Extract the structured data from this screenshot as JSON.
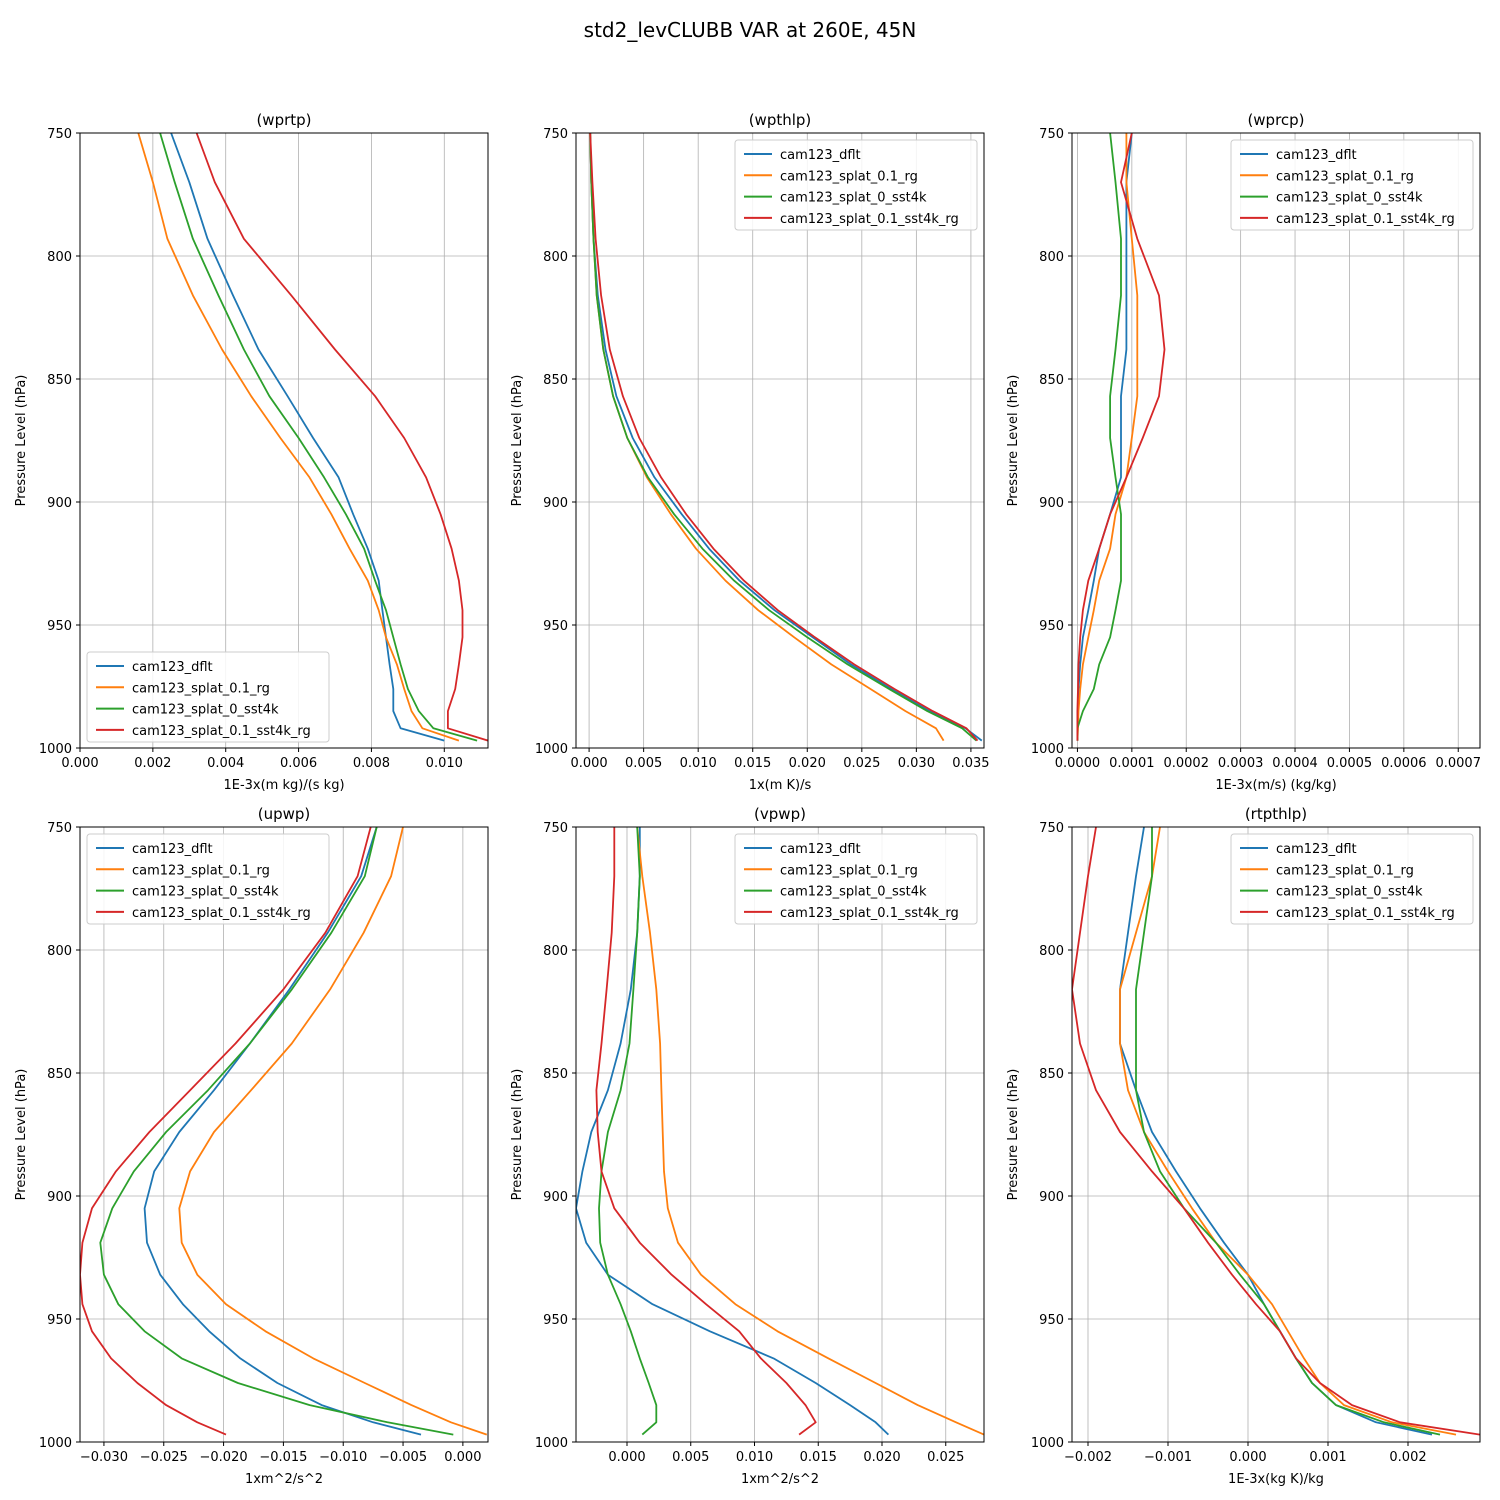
{
  "title": "std2_levCLUBB VAR at 260E, 45N",
  "series_names": [
    "cam123_dflt",
    "cam123_splat_0.1_rg",
    "cam123_splat_0_sst4k",
    "cam123_splat_0.1_sst4k_rg"
  ],
  "colors": [
    "#1f77b4",
    "#ff7f0e",
    "#2ca02c",
    "#d62728"
  ],
  "chart_data": [
    {
      "type": "line",
      "title": "(wprtp)",
      "xlabel": "1E-3x(m kg)/(s kg)",
      "ylabel": "Pressure Level (hPa)",
      "xlim": [
        0,
        0.0112
      ],
      "ylim": [
        1000,
        750
      ],
      "grid": true,
      "legend": "lower-left",
      "xticks": [
        0,
        0.002,
        0.004,
        0.006,
        0.008,
        0.01
      ],
      "xtick_labels": [
        "0.000",
        "0.002",
        "0.004",
        "0.006",
        "0.008",
        "0.010"
      ],
      "yticks": [
        750,
        800,
        850,
        900,
        950,
        1000
      ],
      "ytick_labels": [
        "750",
        "800",
        "850",
        "900",
        "950",
        "1000"
      ],
      "pressure": [
        750,
        770,
        793,
        816,
        838,
        857,
        874,
        890,
        905,
        919,
        932,
        944,
        955,
        966,
        976,
        985,
        992,
        997
      ],
      "series": [
        {
          "name": "cam123_dflt",
          "x": [
            0.0025,
            0.003,
            0.0035,
            0.0042,
            0.0049,
            0.0057,
            0.0064,
            0.0071,
            0.0075,
            0.0079,
            0.0082,
            0.0083,
            0.0084,
            0.0085,
            0.0086,
            0.0086,
            0.0088,
            0.01
          ]
        },
        {
          "name": "cam123_splat_0.1_rg",
          "x": [
            0.0016,
            0.002,
            0.0024,
            0.0031,
            0.0039,
            0.0047,
            0.0055,
            0.0063,
            0.0069,
            0.0074,
            0.0079,
            0.0082,
            0.0084,
            0.0087,
            0.0089,
            0.0091,
            0.0094,
            0.0104
          ]
        },
        {
          "name": "cam123_splat_0_sst4k",
          "x": [
            0.0022,
            0.0026,
            0.0031,
            0.0038,
            0.0045,
            0.0052,
            0.006,
            0.0067,
            0.0073,
            0.0078,
            0.0081,
            0.0084,
            0.0086,
            0.0088,
            0.009,
            0.0093,
            0.0097,
            0.0109
          ]
        },
        {
          "name": "cam123_splat_0.1_sst4k_rg",
          "x": [
            0.0032,
            0.0037,
            0.0045,
            0.0058,
            0.007,
            0.0081,
            0.0089,
            0.0095,
            0.0099,
            0.0102,
            0.0104,
            0.0105,
            0.0105,
            0.0104,
            0.0103,
            0.0101,
            0.0101,
            0.0112
          ]
        }
      ]
    },
    {
      "type": "line",
      "title": "(wpthlp)",
      "xlabel": "1x(m K)/s",
      "ylabel": "Pressure Level (hPa)",
      "xlim": [
        -0.0012,
        0.0362
      ],
      "ylim": [
        1000,
        750
      ],
      "grid": true,
      "legend": "upper-right",
      "xticks": [
        0,
        0.005,
        0.01,
        0.015,
        0.02,
        0.025,
        0.03,
        0.035
      ],
      "xtick_labels": [
        "0.000",
        "0.005",
        "0.010",
        "0.015",
        "0.020",
        "0.025",
        "0.030",
        "0.035"
      ],
      "yticks": [
        750,
        800,
        850,
        900,
        950,
        1000
      ],
      "ytick_labels": [
        "750",
        "800",
        "850",
        "900",
        "950",
        "1000"
      ],
      "pressure": [
        750,
        770,
        793,
        816,
        838,
        857,
        874,
        890,
        905,
        919,
        932,
        944,
        955,
        966,
        976,
        985,
        992,
        997
      ],
      "series": [
        {
          "name": "cam123_dflt",
          "x": [
            0.0001,
            0.0002,
            0.0004,
            0.0008,
            0.0015,
            0.0025,
            0.004,
            0.006,
            0.0085,
            0.011,
            0.0138,
            0.017,
            0.0205,
            0.024,
            0.0277,
            0.0312,
            0.0345,
            0.036
          ]
        },
        {
          "name": "cam123_splat_0.1_rg",
          "x": [
            0.0001,
            0.0002,
            0.0004,
            0.0007,
            0.0013,
            0.0022,
            0.0035,
            0.0053,
            0.0075,
            0.0098,
            0.0125,
            0.0155,
            0.0188,
            0.0222,
            0.0258,
            0.029,
            0.0318,
            0.0325
          ]
        },
        {
          "name": "cam123_splat_0_sst4k",
          "x": [
            0.0001,
            0.0002,
            0.0004,
            0.0007,
            0.0013,
            0.0022,
            0.0035,
            0.0054,
            0.0078,
            0.0104,
            0.0133,
            0.0165,
            0.02,
            0.0237,
            0.0275,
            0.031,
            0.0342,
            0.0355
          ]
        },
        {
          "name": "cam123_splat_0.1_sst4k_rg",
          "x": [
            0.0001,
            0.0003,
            0.0006,
            0.0011,
            0.0019,
            0.0031,
            0.0046,
            0.0066,
            0.0089,
            0.0114,
            0.0142,
            0.0173,
            0.0207,
            0.0243,
            0.028,
            0.0315,
            0.0346,
            0.0356
          ]
        }
      ]
    },
    {
      "type": "line",
      "title": "(wprcp)",
      "xlabel": "1E-3x(m/s) (kg/kg)",
      "ylabel": "Pressure Level (hPa)",
      "xlim": [
        -1e-05,
        0.00074
      ],
      "ylim": [
        1000,
        750
      ],
      "grid": true,
      "legend": "upper-right",
      "xticks": [
        0,
        0.0001,
        0.0002,
        0.0003,
        0.0004,
        0.0005,
        0.0006,
        0.0007
      ],
      "xtick_labels": [
        "0.0000",
        "0.0001",
        "0.0002",
        "0.0003",
        "0.0004",
        "0.0005",
        "0.0006",
        "0.0007"
      ],
      "yticks": [
        750,
        800,
        850,
        900,
        950,
        1000
      ],
      "ytick_labels": [
        "750",
        "800",
        "850",
        "900",
        "950",
        "1000"
      ],
      "pressure": [
        750,
        770,
        793,
        816,
        838,
        857,
        874,
        890,
        905,
        919,
        932,
        944,
        955,
        966,
        976,
        985,
        992,
        997
      ],
      "series": [
        {
          "name": "cam123_dflt",
          "x": [
            0.0001,
            9e-05,
            9e-05,
            9e-05,
            9e-05,
            8e-05,
            8e-05,
            8e-05,
            6e-05,
            4e-05,
            3e-05,
            2e-05,
            1e-05,
            5e-06,
            2e-06,
            1e-06,
            0,
            0
          ]
        },
        {
          "name": "cam123_splat_0.1_rg",
          "x": [
            9e-05,
            9e-05,
            0.0001,
            0.00011,
            0.00011,
            0.00011,
            0.0001,
            9e-05,
            7e-05,
            6e-05,
            4e-05,
            3e-05,
            2e-05,
            1e-05,
            5e-06,
            2e-06,
            1e-06,
            0
          ]
        },
        {
          "name": "cam123_splat_0_sst4k",
          "x": [
            6e-05,
            7e-05,
            8e-05,
            8e-05,
            7e-05,
            6e-05,
            6e-05,
            7e-05,
            8e-05,
            8e-05,
            8e-05,
            7e-05,
            6e-05,
            4e-05,
            3e-05,
            1e-05,
            0,
            0
          ]
        },
        {
          "name": "cam123_splat_0.1_sst4k_rg",
          "x": [
            0.0001,
            8e-05,
            0.00011,
            0.00015,
            0.00016,
            0.00015,
            0.00012,
            9e-05,
            6e-05,
            4e-05,
            2e-05,
            1e-05,
            5e-06,
            2e-06,
            1e-06,
            0,
            0,
            0
          ]
        }
      ]
    },
    {
      "type": "line",
      "title": "(upwp)",
      "xlabel": "1xm^2/s^2",
      "ylabel": "Pressure Level (hPa)",
      "xlim": [
        -0.032,
        0.0021
      ],
      "ylim": [
        1000,
        750
      ],
      "grid": true,
      "legend": "upper-left",
      "xticks": [
        -0.03,
        -0.025,
        -0.02,
        -0.015,
        -0.01,
        -0.005,
        0
      ],
      "xtick_labels": [
        "−0.030",
        "−0.025",
        "−0.020",
        "−0.015",
        "−0.010",
        "−0.005",
        "0.000"
      ],
      "yticks": [
        750,
        800,
        850,
        900,
        950,
        1000
      ],
      "ytick_labels": [
        "750",
        "800",
        "850",
        "900",
        "950",
        "1000"
      ],
      "pressure": [
        750,
        770,
        793,
        816,
        838,
        857,
        874,
        890,
        905,
        919,
        932,
        944,
        955,
        966,
        976,
        985,
        992,
        997
      ],
      "series": [
        {
          "name": "cam123_dflt",
          "x": [
            -0.0072,
            -0.0085,
            -0.0113,
            -0.0145,
            -0.0178,
            -0.0208,
            -0.0237,
            -0.0258,
            -0.0266,
            -0.0264,
            -0.0253,
            -0.0234,
            -0.0212,
            -0.0186,
            -0.0155,
            -0.0118,
            -0.0075,
            -0.0035
          ]
        },
        {
          "name": "cam123_splat_0.1_rg",
          "x": [
            -0.005,
            -0.006,
            -0.0083,
            -0.0111,
            -0.0143,
            -0.0177,
            -0.0208,
            -0.0228,
            -0.0237,
            -0.0235,
            -0.0222,
            -0.0198,
            -0.0165,
            -0.0125,
            -0.0082,
            -0.0043,
            -0.001,
            0.002
          ]
        },
        {
          "name": "cam123_splat_0_sst4k",
          "x": [
            -0.0072,
            -0.0082,
            -0.011,
            -0.0143,
            -0.0178,
            -0.0213,
            -0.0248,
            -0.0275,
            -0.0293,
            -0.0303,
            -0.03,
            -0.0288,
            -0.0266,
            -0.0235,
            -0.0188,
            -0.0128,
            -0.0063,
            -0.0008
          ]
        },
        {
          "name": "cam123_splat_0.1_sst4k_rg",
          "x": [
            -0.0077,
            -0.0088,
            -0.0115,
            -0.015,
            -0.019,
            -0.0228,
            -0.0262,
            -0.029,
            -0.031,
            -0.0318,
            -0.032,
            -0.0318,
            -0.031,
            -0.0294,
            -0.0272,
            -0.0248,
            -0.0222,
            -0.0198
          ]
        }
      ]
    },
    {
      "type": "line",
      "title": "(vpwp)",
      "xlabel": "1xm^2/s^2",
      "ylabel": "Pressure Level (hPa)",
      "xlim": [
        -0.004,
        0.028
      ],
      "ylim": [
        1000,
        750
      ],
      "grid": true,
      "legend": "upper-right",
      "xticks": [
        0,
        0.005,
        0.01,
        0.015,
        0.02,
        0.025
      ],
      "xtick_labels": [
        "0.000",
        "0.005",
        "0.010",
        "0.015",
        "0.020",
        "0.025"
      ],
      "yticks": [
        750,
        800,
        850,
        900,
        950,
        1000
      ],
      "ytick_labels": [
        "750",
        "800",
        "850",
        "900",
        "950",
        "1000"
      ],
      "pressure": [
        750,
        770,
        793,
        816,
        838,
        857,
        874,
        890,
        905,
        919,
        932,
        944,
        955,
        966,
        976,
        985,
        992,
        997
      ],
      "series": [
        {
          "name": "cam123_dflt",
          "x": [
            0.001,
            0.001,
            0.0008,
            0.0003,
            -0.0005,
            -0.0015,
            -0.0028,
            -0.0035,
            -0.004,
            -0.0032,
            -0.0015,
            0.002,
            0.0065,
            0.0115,
            0.0148,
            0.0175,
            0.0195,
            0.0205
          ]
        },
        {
          "name": "cam123_splat_0.1_rg",
          "x": [
            0.0008,
            0.0012,
            0.0018,
            0.0023,
            0.0026,
            0.0027,
            0.0028,
            0.0029,
            0.0032,
            0.004,
            0.0058,
            0.0085,
            0.0118,
            0.0158,
            0.0195,
            0.0228,
            0.0258,
            0.028
          ]
        },
        {
          "name": "cam123_splat_0_sst4k",
          "x": [
            0.0008,
            0.001,
            0.0008,
            0.0005,
            0.0002,
            -0.0005,
            -0.0015,
            -0.002,
            -0.0022,
            -0.0021,
            -0.0015,
            -0.0005,
            0.0003,
            0.001,
            0.0017,
            0.0023,
            0.0023,
            0.0012
          ]
        },
        {
          "name": "cam123_splat_0.1_sst4k_rg",
          "x": [
            -0.001,
            -0.001,
            -0.0012,
            -0.0016,
            -0.002,
            -0.0024,
            -0.0023,
            -0.002,
            -0.001,
            0.001,
            0.0035,
            0.0062,
            0.0088,
            0.0105,
            0.0125,
            0.014,
            0.0148,
            0.0135
          ]
        }
      ]
    },
    {
      "type": "line",
      "title": "(rtpthlp)",
      "xlabel": "1E-3x(kg K)/kg",
      "ylabel": "Pressure Level (hPa)",
      "xlim": [
        -0.0022,
        0.0029
      ],
      "ylim": [
        1000,
        750
      ],
      "grid": true,
      "legend": "upper-right",
      "xticks": [
        -0.002,
        -0.001,
        0,
        0.001,
        0.002
      ],
      "xtick_labels": [
        "−0.002",
        "−0.001",
        "0.000",
        "0.001",
        "0.002"
      ],
      "yticks": [
        750,
        800,
        850,
        900,
        950,
        1000
      ],
      "ytick_labels": [
        "750",
        "800",
        "850",
        "900",
        "950",
        "1000"
      ],
      "pressure": [
        750,
        770,
        793,
        816,
        838,
        857,
        874,
        890,
        905,
        919,
        932,
        944,
        955,
        966,
        976,
        985,
        992,
        997
      ],
      "series": [
        {
          "name": "cam123_dflt",
          "x": [
            -0.0013,
            -0.0014,
            -0.0015,
            -0.0016,
            -0.0016,
            -0.0014,
            -0.0012,
            -0.0009,
            -0.0006,
            -0.0003,
            0,
            0.0002,
            0.0004,
            0.0006,
            0.0008,
            0.0011,
            0.0016,
            0.0023
          ]
        },
        {
          "name": "cam123_splat_0.1_rg",
          "x": [
            -0.0011,
            -0.0012,
            -0.0014,
            -0.0016,
            -0.0016,
            -0.0015,
            -0.0013,
            -0.001,
            -0.0007,
            -0.0004,
            0,
            0.0003,
            0.0005,
            0.0007,
            0.0009,
            0.0012,
            0.0018,
            0.0026
          ]
        },
        {
          "name": "cam123_splat_0_sst4k",
          "x": [
            -0.0012,
            -0.0012,
            -0.0013,
            -0.0014,
            -0.0014,
            -0.0014,
            -0.0013,
            -0.0011,
            -0.0008,
            -0.0004,
            -0.0001,
            0.0002,
            0.0004,
            0.0006,
            0.0008,
            0.0011,
            0.0017,
            0.0024
          ]
        },
        {
          "name": "cam123_splat_0.1_sst4k_rg",
          "x": [
            -0.0019,
            -0.002,
            -0.0021,
            -0.0022,
            -0.0021,
            -0.0019,
            -0.0016,
            -0.0012,
            -0.0008,
            -0.0005,
            -0.0002,
            0.0001,
            0.0004,
            0.0006,
            0.0009,
            0.0013,
            0.0019,
            0.0029
          ]
        }
      ]
    }
  ]
}
